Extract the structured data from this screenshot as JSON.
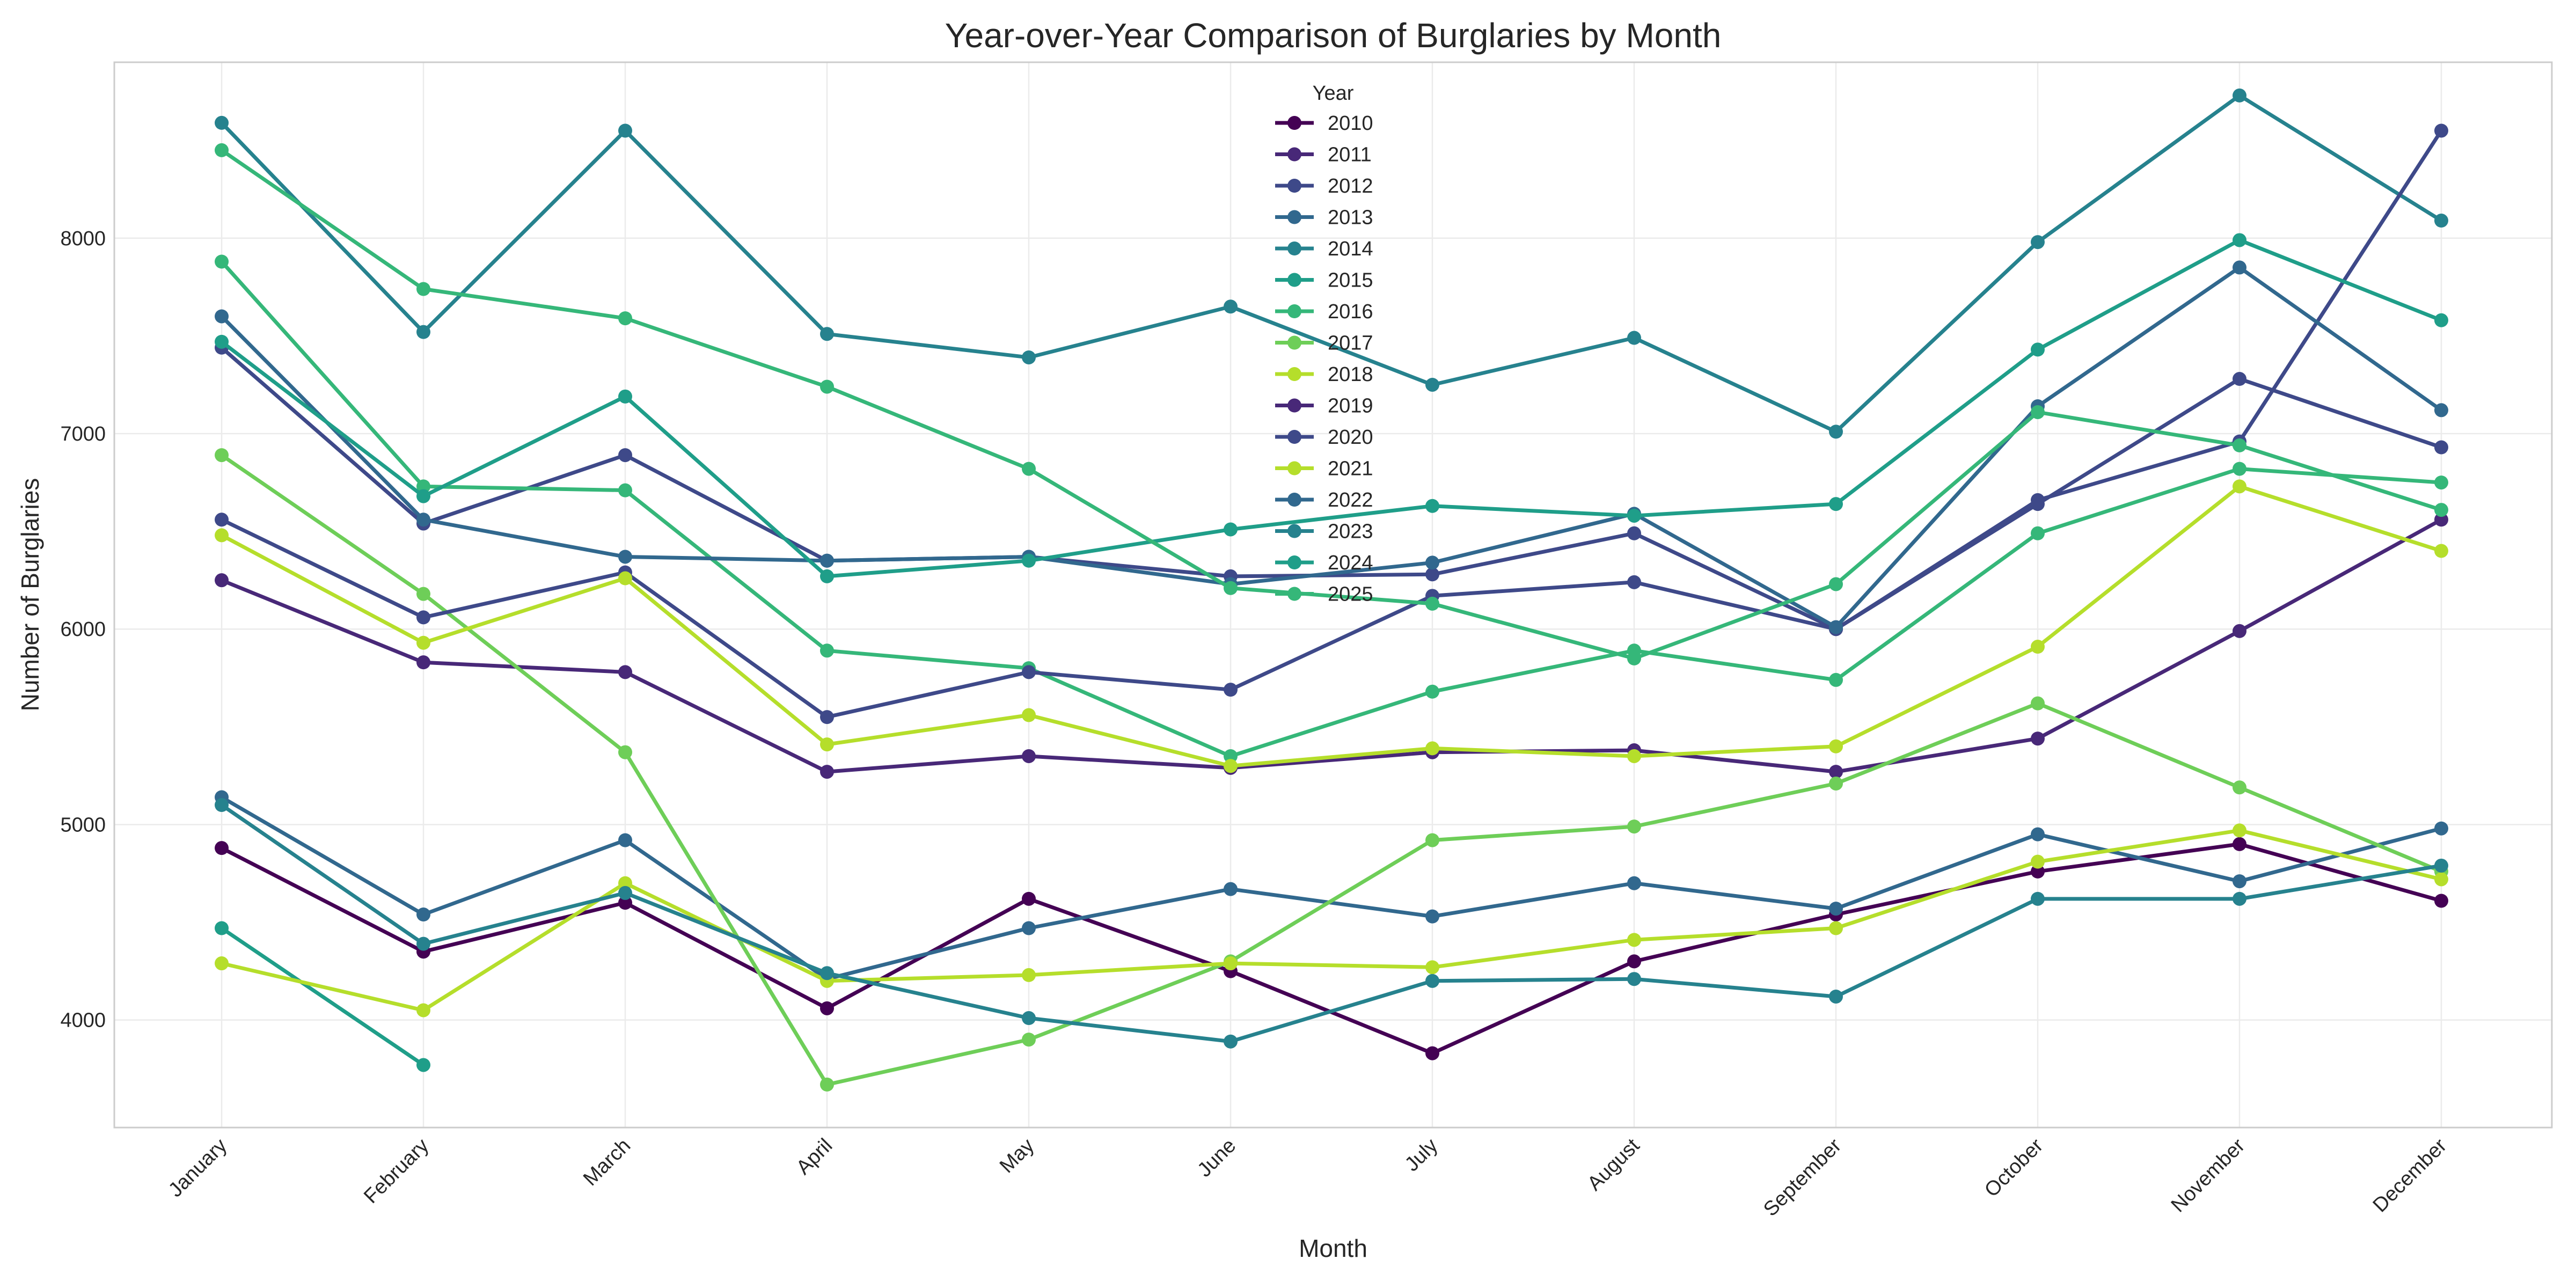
{
  "chart_data": {
    "type": "line",
    "title": "Year-over-Year Comparison of Burglaries by Month",
    "xlabel": "Month",
    "ylabel": "Number of Burglaries",
    "categories": [
      "January",
      "February",
      "March",
      "April",
      "May",
      "June",
      "July",
      "August",
      "September",
      "October",
      "November",
      "December"
    ],
    "ylim": [
      3450,
      8900
    ],
    "yticks": [
      4000,
      5000,
      6000,
      7000,
      8000
    ],
    "grid": true,
    "legend": {
      "title": "Year",
      "position": "top-center"
    },
    "series": [
      {
        "name": "2010",
        "color": "#440154",
        "values": [
          4880,
          4350,
          4600,
          4060,
          4620,
          4250,
          3830,
          4300,
          4540,
          4760,
          4900,
          4610
        ]
      },
      {
        "name": "2011",
        "color": "#482878",
        "values": [
          6250,
          5830,
          5780,
          5270,
          5350,
          5290,
          5370,
          5380,
          5270,
          5440,
          5990,
          6560
        ]
      },
      {
        "name": "2012",
        "color": "#3e4989",
        "values": [
          7440,
          6540,
          6890,
          6350,
          6370,
          6270,
          6280,
          6490,
          6000,
          6640,
          7280,
          6930
        ]
      },
      {
        "name": "2013",
        "color": "#31688e",
        "values": [
          5140,
          4540,
          4920,
          4210,
          4470,
          4670,
          4530,
          4700,
          4570,
          4950,
          4710,
          4980
        ]
      },
      {
        "name": "2014",
        "color": "#26828e",
        "values": [
          8590,
          7520,
          8550,
          7510,
          7390,
          7650,
          7250,
          7490,
          7010,
          7980,
          8730,
          8090
        ]
      },
      {
        "name": "2015",
        "color": "#1f9e89",
        "values": [
          4470,
          3770,
          null,
          null,
          null,
          null,
          null,
          null,
          null,
          null,
          null,
          null
        ]
      },
      {
        "name": "2016",
        "color": "#35b779",
        "values": [
          7880,
          6730,
          6710,
          5890,
          5800,
          5350,
          5680,
          5890,
          5740,
          6490,
          6820,
          6750
        ]
      },
      {
        "name": "2017",
        "color": "#6ece58",
        "values": [
          6890,
          6180,
          5370,
          3670,
          3900,
          4300,
          4920,
          4990,
          5210,
          5620,
          5190,
          4760
        ]
      },
      {
        "name": "2018",
        "color": "#b5de2b",
        "values": [
          4290,
          4050,
          4700,
          4200,
          4230,
          4290,
          4270,
          4410,
          4470,
          4810,
          4970,
          4720
        ]
      },
      {
        "name": "2019",
        "color": "#482878",
        "values": [
          null,
          null,
          null,
          null,
          null,
          null,
          null,
          null,
          null,
          null,
          null,
          null
        ]
      },
      {
        "name": "2020",
        "color": "#3e4989",
        "values": [
          6560,
          6060,
          6290,
          5550,
          5780,
          5690,
          6170,
          6240,
          6000,
          6660,
          6960,
          8550
        ]
      },
      {
        "name": "2021",
        "color": "#b5de2b",
        "values": [
          6480,
          5930,
          6260,
          5410,
          5560,
          5300,
          5390,
          5350,
          5400,
          5910,
          6730,
          6400
        ]
      },
      {
        "name": "2022",
        "color": "#31688e",
        "values": [
          7600,
          6560,
          6370,
          6350,
          6370,
          6230,
          6340,
          6590,
          6010,
          7140,
          7850,
          7120
        ]
      },
      {
        "name": "2023",
        "color": "#26828e",
        "values": [
          5100,
          4390,
          4650,
          4240,
          4010,
          3890,
          4200,
          4210,
          4120,
          4620,
          4620,
          4790
        ]
      },
      {
        "name": "2024",
        "color": "#1f9e89",
        "values": [
          7470,
          6680,
          7190,
          6270,
          6350,
          6510,
          6630,
          6580,
          6640,
          7430,
          7990,
          7580
        ]
      },
      {
        "name": "2025",
        "color": "#35b779",
        "values": [
          8450,
          7740,
          7590,
          7240,
          6820,
          6210,
          6130,
          5850,
          6230,
          7110,
          6940,
          6610
        ]
      }
    ]
  }
}
